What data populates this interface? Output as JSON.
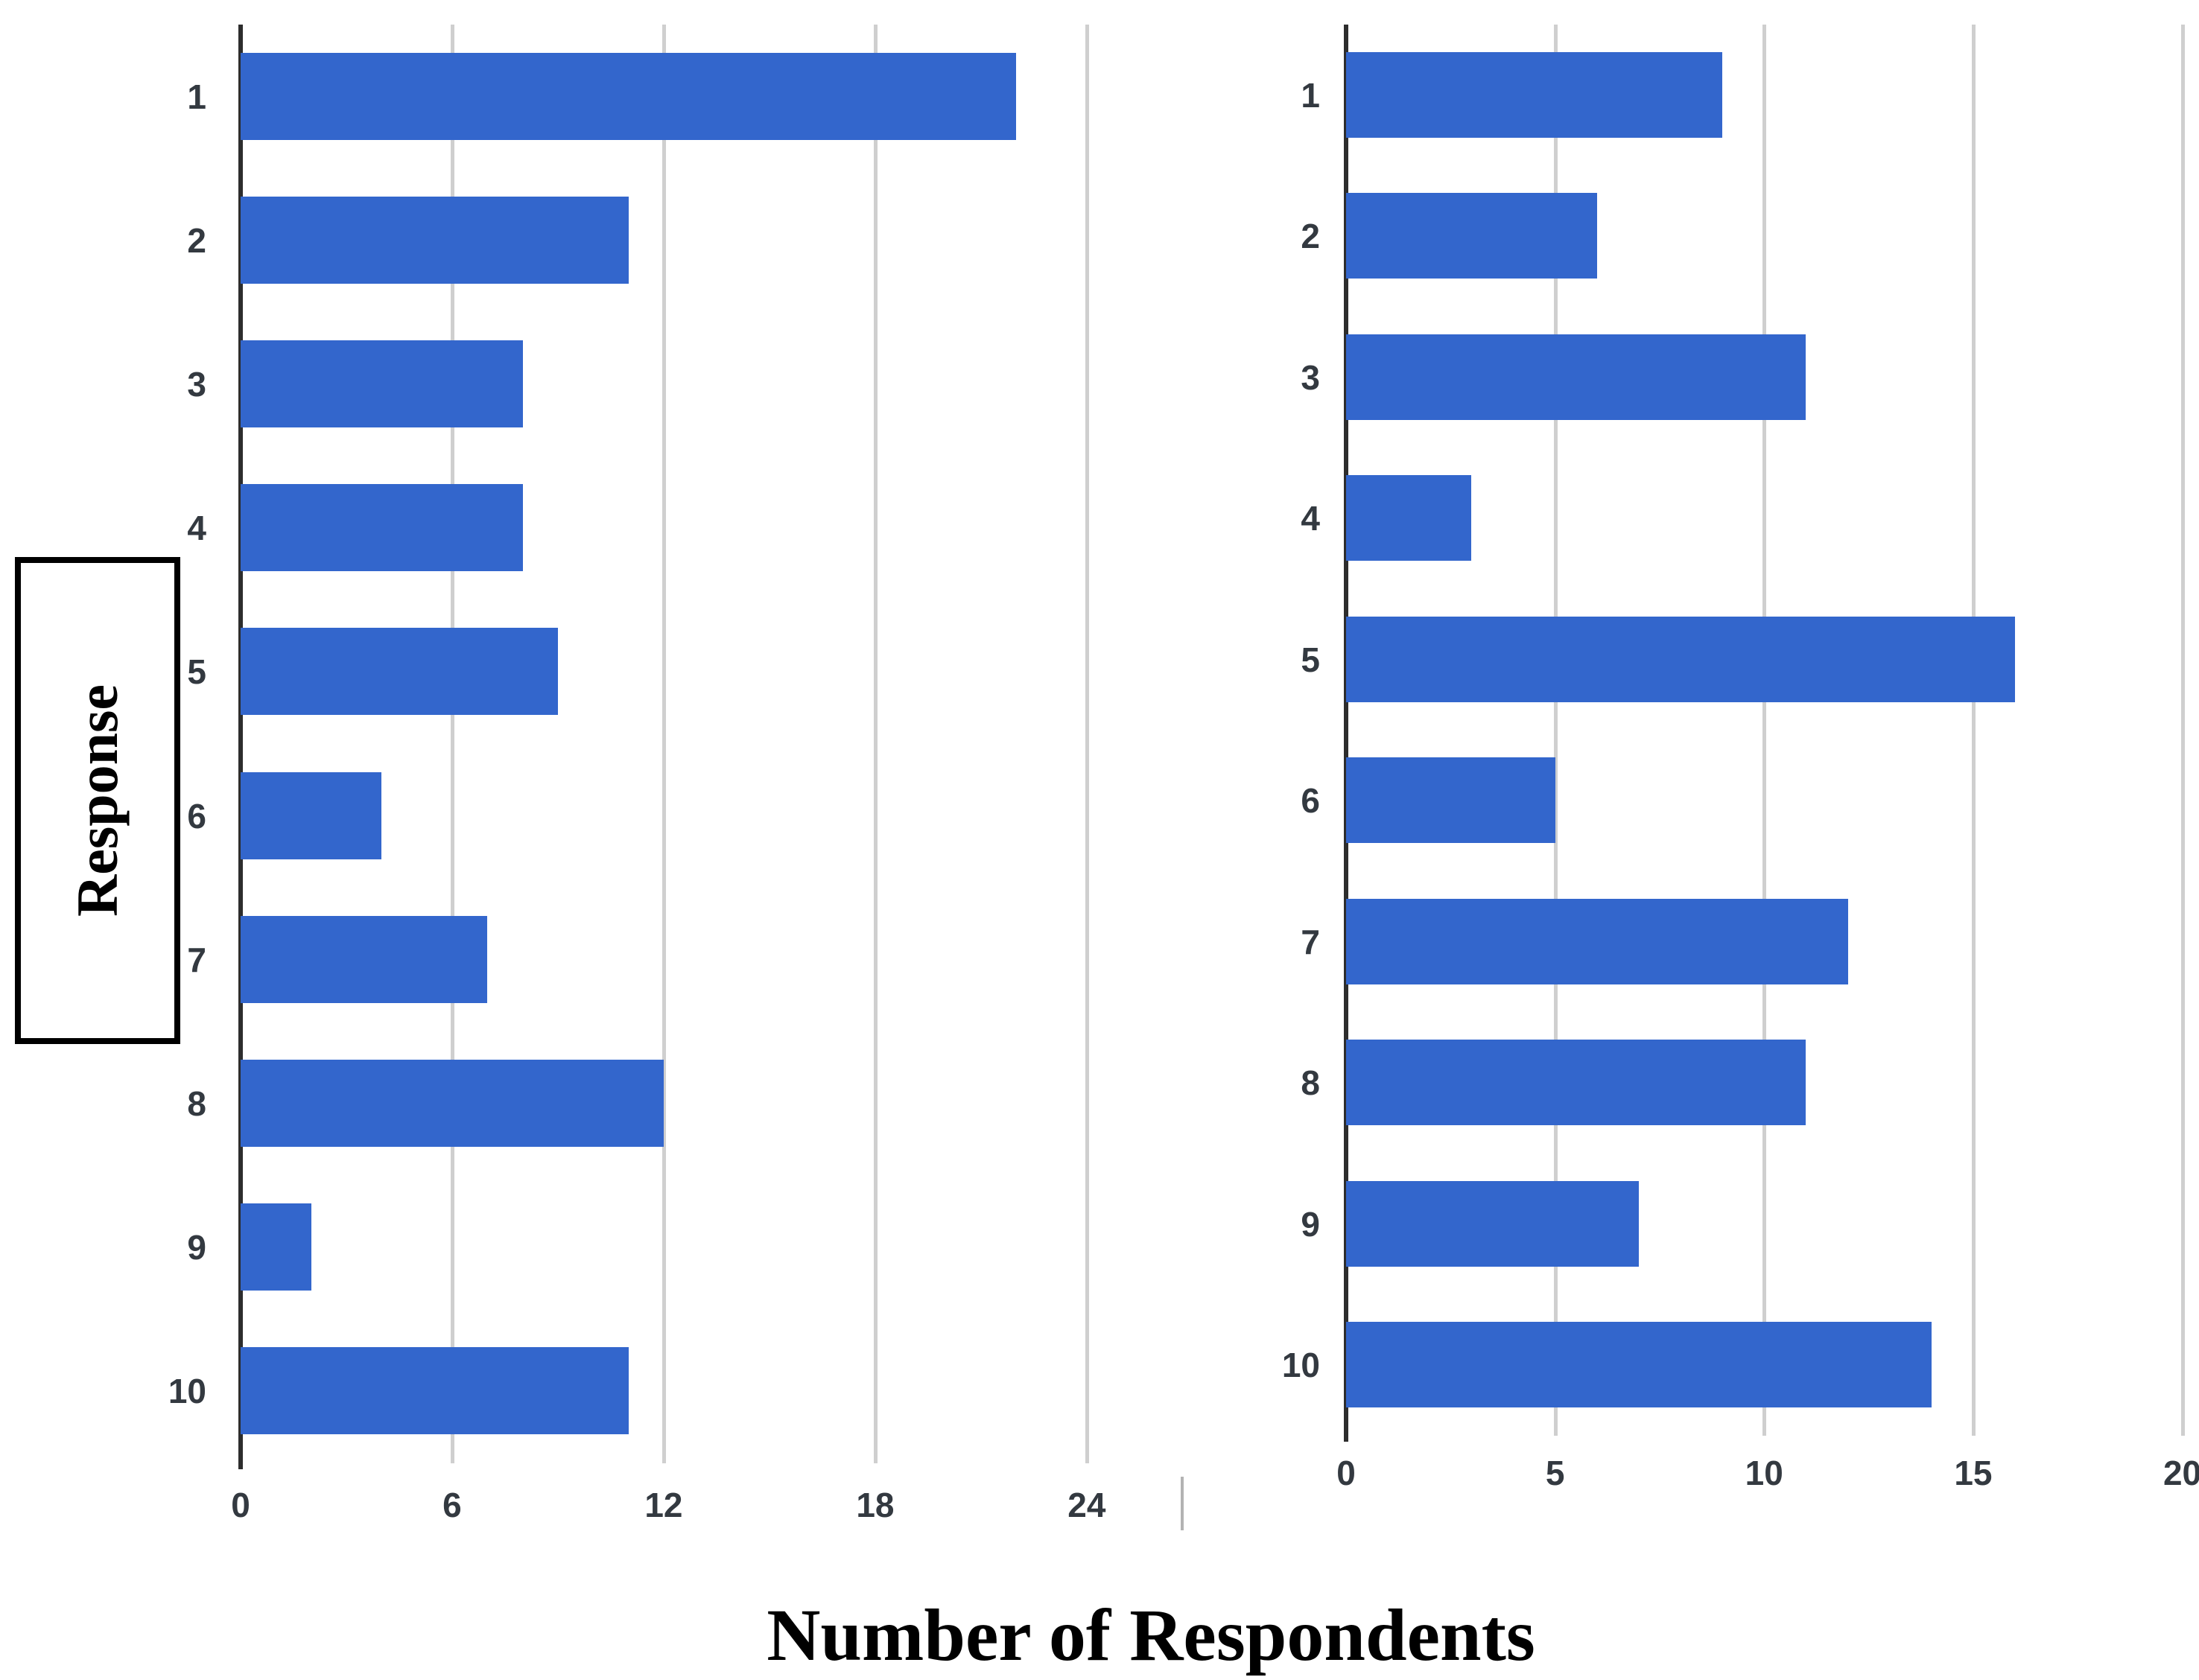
{
  "figure": {
    "y_axis_title": "Response",
    "x_axis_title": "Number of Respondents"
  },
  "colors": {
    "bar": "#3366cc",
    "gridline": "#cfcfcf",
    "axis_line": "#2d2d2d",
    "tick_label": "#333940",
    "axis_title": "#000000"
  },
  "chart_data": [
    {
      "type": "bar",
      "orientation": "horizontal",
      "title": "",
      "categories": [
        "1",
        "2",
        "3",
        "4",
        "5",
        "6",
        "7",
        "8",
        "9",
        "10"
      ],
      "values": [
        22,
        11,
        8,
        8,
        9,
        4,
        7,
        12,
        2,
        11
      ],
      "xticks": [
        0,
        6,
        12,
        18,
        24
      ],
      "xlim": [
        0,
        26.2
      ],
      "ylabel": "Response",
      "xlabel": "Number of Respondents",
      "grid": true,
      "legend": false
    },
    {
      "type": "bar",
      "orientation": "horizontal",
      "title": "",
      "categories": [
        "1",
        "2",
        "3",
        "4",
        "5",
        "6",
        "7",
        "8",
        "9",
        "10"
      ],
      "values": [
        9,
        6,
        11,
        3,
        16,
        5,
        12,
        11,
        7,
        14
      ],
      "xticks": [
        0,
        5,
        10,
        15,
        20
      ],
      "xlim": [
        0,
        20.4
      ],
      "ylabel": "Response",
      "xlabel": "Number of Respondents",
      "grid": true,
      "legend": false
    }
  ]
}
